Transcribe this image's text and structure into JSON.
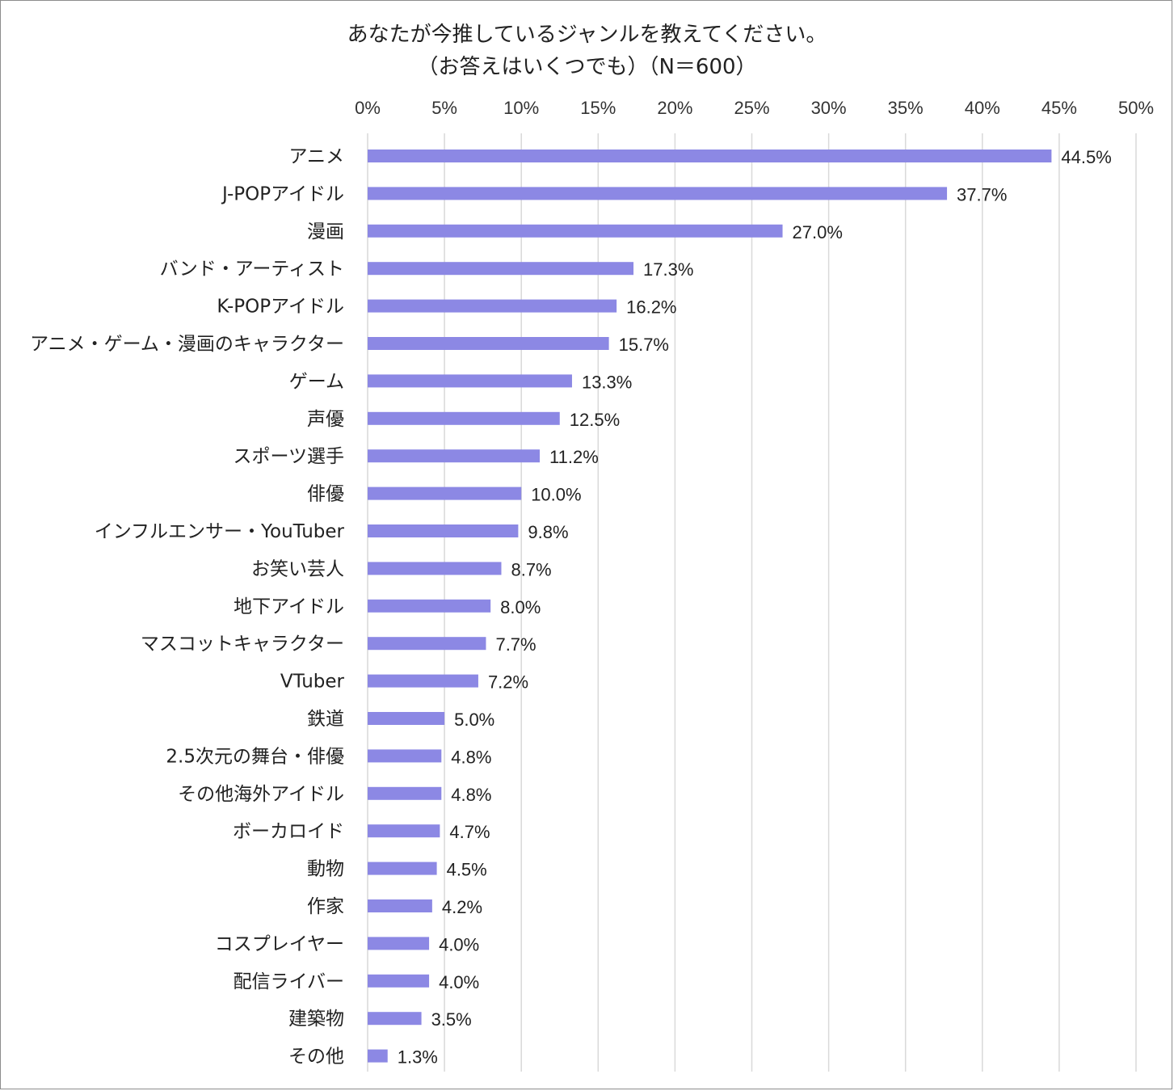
{
  "chart_data": {
    "type": "bar",
    "orientation": "horizontal",
    "title": "あなたが今推しているジャンルを教えてください。",
    "subtitle": "（お答えはいくつでも）（N＝600）",
    "xlim": [
      0,
      50
    ],
    "tick_values": [
      0,
      5,
      10,
      15,
      20,
      25,
      30,
      35,
      40,
      45,
      50
    ],
    "tick_labels": [
      "0%",
      "5%",
      "10%",
      "15%",
      "20%",
      "25%",
      "30%",
      "35%",
      "40%",
      "45%",
      "50%"
    ],
    "axis_position": "top",
    "grid": true,
    "bar_color": "#8c88e4",
    "grid_color": "#d9d9d9",
    "categories": [
      "アニメ",
      "J-POPアイドル",
      "漫画",
      "バンド・アーティスト",
      "K-POPアイドル",
      "アニメ・ゲーム・漫画のキャラクター",
      "ゲーム",
      "声優",
      "スポーツ選手",
      "俳優",
      "インフルエンサー・YouTuber",
      "お笑い芸人",
      "地下アイドル",
      "マスコットキャラクター",
      "VTuber",
      "鉄道",
      "2.5次元の舞台・俳優",
      "その他海外アイドル",
      "ボーカロイド",
      "動物",
      "作家",
      "コスプレイヤー",
      "配信ライバー",
      "建築物",
      "その他"
    ],
    "values": [
      44.5,
      37.7,
      27.0,
      17.3,
      16.2,
      15.7,
      13.3,
      12.5,
      11.2,
      10.0,
      9.8,
      8.7,
      8.0,
      7.7,
      7.2,
      5.0,
      4.8,
      4.8,
      4.7,
      4.5,
      4.2,
      4.0,
      4.0,
      3.5,
      1.3
    ],
    "value_labels": [
      "44.5%",
      "37.7%",
      "27.0%",
      "17.3%",
      "16.2%",
      "15.7%",
      "13.3%",
      "12.5%",
      "11.2%",
      "10.0%",
      "9.8%",
      "8.7%",
      "8.0%",
      "7.7%",
      "7.2%",
      "5.0%",
      "4.8%",
      "4.8%",
      "4.7%",
      "4.5%",
      "4.2%",
      "4.0%",
      "4.0%",
      "3.5%",
      "1.3%"
    ]
  }
}
